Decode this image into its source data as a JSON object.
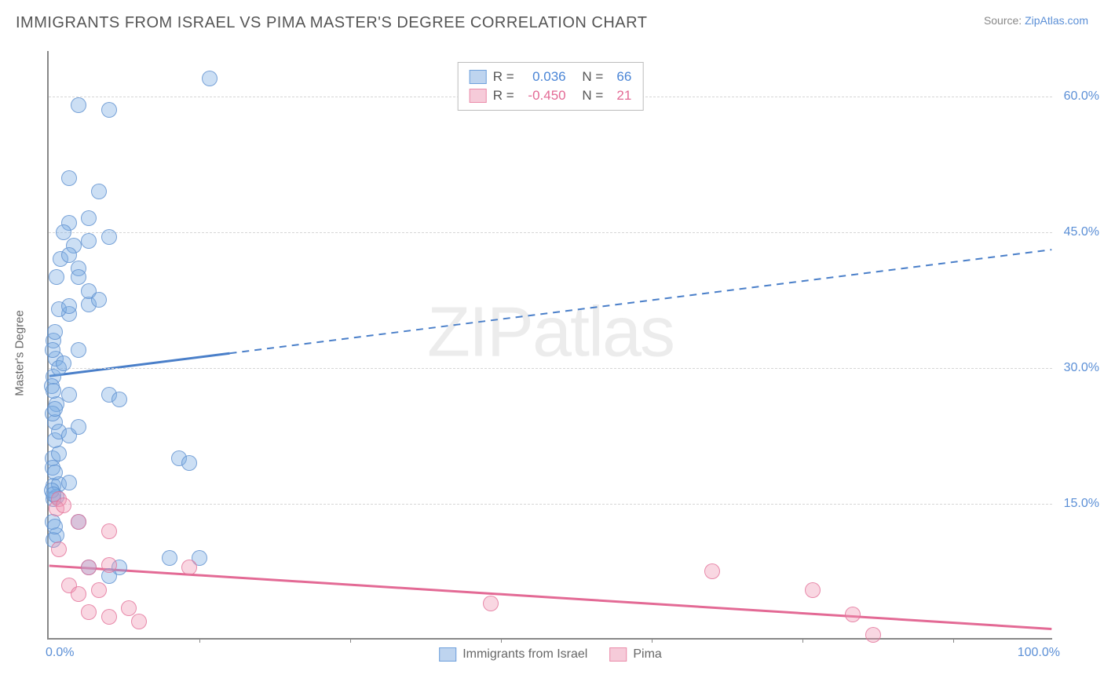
{
  "header": {
    "title": "IMMIGRANTS FROM ISRAEL VS PIMA MASTER'S DEGREE CORRELATION CHART",
    "source_prefix": "Source: ",
    "source_link": "ZipAtlas.com"
  },
  "chart": {
    "type": "scatter",
    "ylabel": "Master's Degree",
    "xlim": [
      0,
      100
    ],
    "ylim": [
      0,
      65
    ],
    "yticks": [
      {
        "v": 15,
        "label": "15.0%"
      },
      {
        "v": 30,
        "label": "30.0%"
      },
      {
        "v": 45,
        "label": "45.0%"
      },
      {
        "v": 60,
        "label": "60.0%"
      }
    ],
    "xticks_minor": [
      15,
      30,
      45,
      60,
      75,
      90
    ],
    "xtick_left": "0.0%",
    "xtick_right": "100.0%",
    "background_color": "#ffffff",
    "grid_color": "#d6d6d6",
    "axis_color": "#888888",
    "watermark": "ZIPatlas",
    "legend_corr": {
      "rows": [
        {
          "swatch": "blue",
          "r_label": "R =",
          "r_val": "0.036",
          "n_label": "N =",
          "n_val": "66"
        },
        {
          "swatch": "pink",
          "r_label": "R =",
          "r_val": "-0.450",
          "n_label": "N =",
          "n_val": "21"
        }
      ]
    },
    "legend_bottom": [
      {
        "swatch": "blue",
        "label": "Immigrants from Israel"
      },
      {
        "swatch": "pink",
        "label": "Pima"
      }
    ],
    "series": {
      "blue": {
        "color_fill": "rgba(120,170,225,0.38)",
        "color_stroke": "rgba(90,140,205,0.75)",
        "marker_size": 20,
        "trend": {
          "x1": 0,
          "y1": 29,
          "x2": 100,
          "y2": 43,
          "solid_until_x": 18,
          "color": "#4a7fc9",
          "width": 3
        },
        "points": [
          [
            0.5,
            29
          ],
          [
            0.7,
            31
          ],
          [
            0.5,
            33
          ],
          [
            2,
            36
          ],
          [
            1,
            36.5
          ],
          [
            4,
            37
          ],
          [
            3,
            32
          ],
          [
            0.8,
            40
          ],
          [
            1.2,
            42
          ],
          [
            2.5,
            43.5
          ],
          [
            4,
            44
          ],
          [
            6,
            44.5
          ],
          [
            2,
            46
          ],
          [
            4,
            46.5
          ],
          [
            0.6,
            24
          ],
          [
            0.8,
            26
          ],
          [
            2,
            27
          ],
          [
            6,
            27
          ],
          [
            7,
            26.5
          ],
          [
            0.6,
            22
          ],
          [
            1,
            23
          ],
          [
            2,
            22.5
          ],
          [
            3,
            23.5
          ],
          [
            0.4,
            20
          ],
          [
            1,
            20.5
          ],
          [
            13,
            20
          ],
          [
            14,
            19.5
          ],
          [
            0.5,
            17
          ],
          [
            1,
            17.2
          ],
          [
            2,
            17.3
          ],
          [
            0.5,
            15.5
          ],
          [
            0.8,
            15.8
          ],
          [
            3,
            13
          ],
          [
            4,
            8
          ],
          [
            7,
            8
          ],
          [
            12,
            9
          ],
          [
            6,
            7
          ],
          [
            0.5,
            11
          ],
          [
            0.8,
            11.5
          ],
          [
            1,
            30
          ],
          [
            1.5,
            30.5
          ],
          [
            0.4,
            32
          ],
          [
            0.6,
            34
          ],
          [
            4,
            38.5
          ],
          [
            5,
            37.5
          ],
          [
            3,
            41
          ],
          [
            2,
            42.5
          ],
          [
            5,
            49.5
          ],
          [
            2,
            51
          ],
          [
            3,
            59
          ],
          [
            6,
            58.5
          ],
          [
            16,
            62
          ],
          [
            0.3,
            28
          ],
          [
            0.5,
            27.5
          ],
          [
            0.4,
            25
          ],
          [
            0.6,
            25.5
          ],
          [
            0.4,
            19
          ],
          [
            0.6,
            18.5
          ],
          [
            0.3,
            16.5
          ],
          [
            0.5,
            16
          ],
          [
            15,
            9
          ],
          [
            0.4,
            13
          ],
          [
            0.6,
            12.5
          ],
          [
            2,
            36.8
          ],
          [
            3,
            40
          ],
          [
            1.5,
            45
          ]
        ]
      },
      "pink": {
        "color_fill": "rgba(238,150,180,0.38)",
        "color_stroke": "rgba(225,110,150,0.75)",
        "marker_size": 20,
        "trend": {
          "x1": 0,
          "y1": 8,
          "x2": 100,
          "y2": 1,
          "color": "#e36a95",
          "width": 3
        },
        "points": [
          [
            1,
            15.5
          ],
          [
            0.8,
            14.5
          ],
          [
            1.5,
            14.8
          ],
          [
            3,
            13
          ],
          [
            6,
            12
          ],
          [
            1,
            10
          ],
          [
            4,
            8
          ],
          [
            6,
            8.2
          ],
          [
            14,
            8
          ],
          [
            2,
            6
          ],
          [
            3,
            5
          ],
          [
            5,
            5.5
          ],
          [
            4,
            3
          ],
          [
            6,
            2.5
          ],
          [
            9,
            2
          ],
          [
            8,
            3.5
          ],
          [
            44,
            4
          ],
          [
            66,
            7.5
          ],
          [
            76,
            5.5
          ],
          [
            80,
            2.8
          ],
          [
            82,
            0.5
          ]
        ]
      }
    }
  }
}
